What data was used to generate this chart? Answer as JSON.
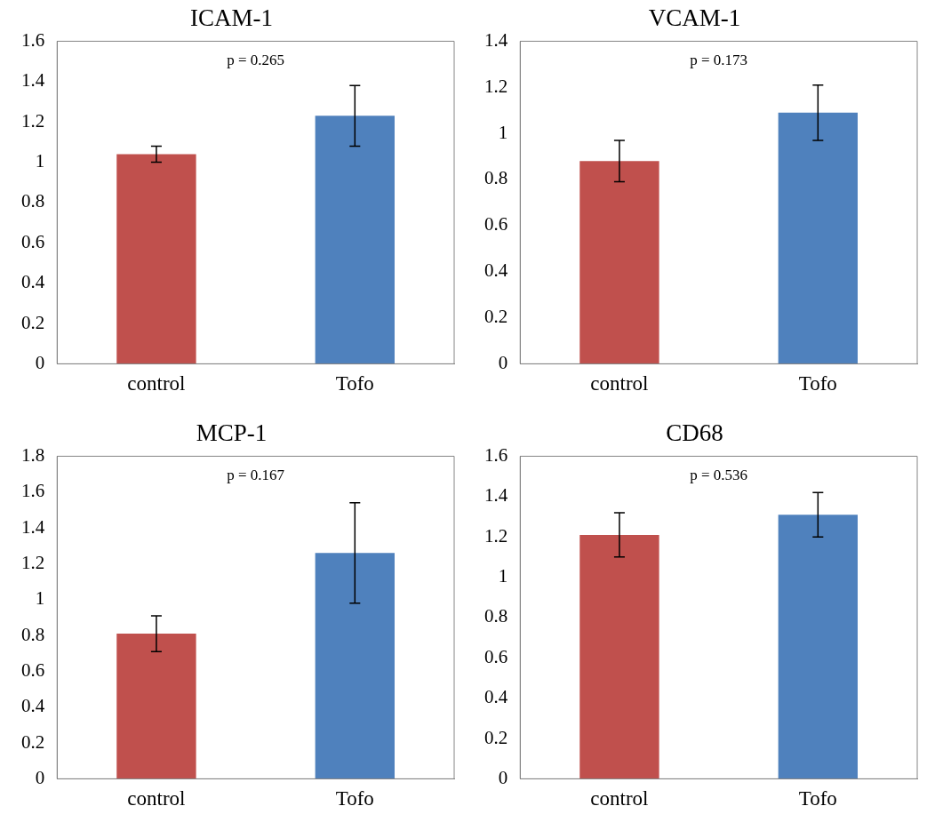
{
  "chart_data": [
    {
      "type": "bar",
      "title": "ICAM-1",
      "categories": [
        "control",
        "Tofo"
      ],
      "values": [
        1.04,
        1.23
      ],
      "colors": [
        "#c0504d",
        "#4f81bd"
      ],
      "errors": [
        0.04,
        0.15
      ],
      "ylim": [
        0,
        1.6
      ],
      "yticks": [
        0,
        0.2,
        0.4,
        0.6,
        0.8,
        1,
        1.2,
        1.4,
        1.6
      ],
      "annotations": [
        "p = 0.265"
      ]
    },
    {
      "type": "bar",
      "title": "VCAM-1",
      "categories": [
        "control",
        "Tofo"
      ],
      "values": [
        0.88,
        1.09
      ],
      "colors": [
        "#c0504d",
        "#4f81bd"
      ],
      "errors": [
        0.09,
        0.12
      ],
      "ylim": [
        0,
        1.4
      ],
      "yticks": [
        0,
        0.2,
        0.4,
        0.6,
        0.8,
        1,
        1.2,
        1.4
      ],
      "annotations": [
        "p = 0.173"
      ]
    },
    {
      "type": "bar",
      "title": "MCP-1",
      "categories": [
        "control",
        "Tofo"
      ],
      "values": [
        0.81,
        1.26
      ],
      "colors": [
        "#c0504d",
        "#4f81bd"
      ],
      "errors": [
        0.1,
        0.28
      ],
      "ylim": [
        0,
        1.8
      ],
      "yticks": [
        0,
        0.2,
        0.4,
        0.6,
        0.8,
        1,
        1.2,
        1.4,
        1.6,
        1.8
      ],
      "annotations": [
        "p = 0.167"
      ]
    },
    {
      "type": "bar",
      "title": "CD68",
      "categories": [
        "control",
        "Tofo"
      ],
      "values": [
        1.21,
        1.31
      ],
      "colors": [
        "#c0504d",
        "#4f81bd"
      ],
      "errors": [
        0.11,
        0.11
      ],
      "ylim": [
        0,
        1.6
      ],
      "yticks": [
        0,
        0.2,
        0.4,
        0.6,
        0.8,
        1,
        1.2,
        1.4,
        1.6
      ],
      "annotations": [
        "p = 0.536"
      ]
    }
  ]
}
